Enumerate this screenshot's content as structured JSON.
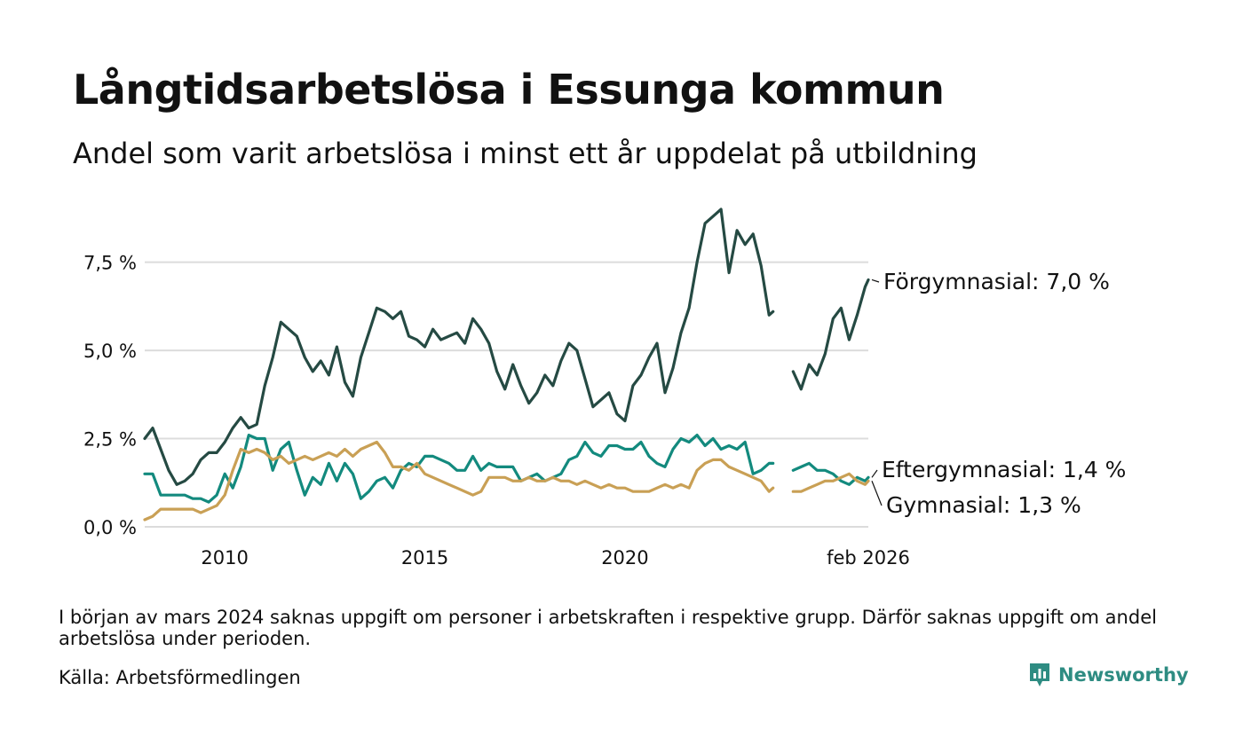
{
  "chart_data": {
    "type": "line",
    "title": "Långtidsarbetslösa i Essunga kommun",
    "subtitle": "Andel som varit arbetslösa i minst ett år uppdelat på utbildning",
    "x_range": [
      2008.0,
      2026.08
    ],
    "ylim": [
      0,
      9.4
    ],
    "y_ticks": [
      0,
      2.5,
      5,
      7.5
    ],
    "y_tick_labels": [
      "0,0 %",
      "2,5 %",
      "5,0 %",
      "7,5 %"
    ],
    "x_ticks": [
      2010,
      2015,
      2020,
      2026.08
    ],
    "x_tick_labels": [
      "2010",
      "2015",
      "2020",
      "feb 2026"
    ],
    "grid": true,
    "gap": [
      2023.7,
      2024.2
    ],
    "series": [
      {
        "name": "Förgymnasial",
        "end_label": "Förgymnasial: 7,0 %",
        "color": "#254a43",
        "points": [
          [
            2008.0,
            2.5
          ],
          [
            2008.2,
            2.8
          ],
          [
            2008.4,
            2.2
          ],
          [
            2008.6,
            1.6
          ],
          [
            2008.8,
            1.2
          ],
          [
            2009.0,
            1.3
          ],
          [
            2009.2,
            1.5
          ],
          [
            2009.4,
            1.9
          ],
          [
            2009.6,
            2.1
          ],
          [
            2009.8,
            2.1
          ],
          [
            2010.0,
            2.4
          ],
          [
            2010.2,
            2.8
          ],
          [
            2010.4,
            3.1
          ],
          [
            2010.6,
            2.8
          ],
          [
            2010.8,
            2.9
          ],
          [
            2011.0,
            4.0
          ],
          [
            2011.2,
            4.8
          ],
          [
            2011.4,
            5.8
          ],
          [
            2011.6,
            5.6
          ],
          [
            2011.8,
            5.4
          ],
          [
            2012.0,
            4.8
          ],
          [
            2012.2,
            4.4
          ],
          [
            2012.4,
            4.7
          ],
          [
            2012.6,
            4.3
          ],
          [
            2012.8,
            5.1
          ],
          [
            2013.0,
            4.1
          ],
          [
            2013.2,
            3.7
          ],
          [
            2013.4,
            4.8
          ],
          [
            2013.6,
            5.5
          ],
          [
            2013.8,
            6.2
          ],
          [
            2014.0,
            6.1
          ],
          [
            2014.2,
            5.9
          ],
          [
            2014.4,
            6.1
          ],
          [
            2014.6,
            5.4
          ],
          [
            2014.8,
            5.3
          ],
          [
            2015.0,
            5.1
          ],
          [
            2015.2,
            5.6
          ],
          [
            2015.4,
            5.3
          ],
          [
            2015.6,
            5.4
          ],
          [
            2015.8,
            5.5
          ],
          [
            2016.0,
            5.2
          ],
          [
            2016.2,
            5.9
          ],
          [
            2016.4,
            5.6
          ],
          [
            2016.6,
            5.2
          ],
          [
            2016.8,
            4.4
          ],
          [
            2017.0,
            3.9
          ],
          [
            2017.2,
            4.6
          ],
          [
            2017.4,
            4.0
          ],
          [
            2017.6,
            3.5
          ],
          [
            2017.8,
            3.8
          ],
          [
            2018.0,
            4.3
          ],
          [
            2018.2,
            4.0
          ],
          [
            2018.4,
            4.7
          ],
          [
            2018.6,
            5.2
          ],
          [
            2018.8,
            5.0
          ],
          [
            2019.0,
            4.2
          ],
          [
            2019.2,
            3.4
          ],
          [
            2019.4,
            3.6
          ],
          [
            2019.6,
            3.8
          ],
          [
            2019.8,
            3.2
          ],
          [
            2020.0,
            3.0
          ],
          [
            2020.2,
            4.0
          ],
          [
            2020.4,
            4.3
          ],
          [
            2020.6,
            4.8
          ],
          [
            2020.8,
            5.2
          ],
          [
            2021.0,
            3.8
          ],
          [
            2021.2,
            4.5
          ],
          [
            2021.4,
            5.5
          ],
          [
            2021.6,
            6.2
          ],
          [
            2021.8,
            7.5
          ],
          [
            2022.0,
            8.6
          ],
          [
            2022.2,
            8.8
          ],
          [
            2022.4,
            9.0
          ],
          [
            2022.6,
            7.2
          ],
          [
            2022.8,
            8.4
          ],
          [
            2023.0,
            8.0
          ],
          [
            2023.2,
            8.3
          ],
          [
            2023.4,
            7.4
          ],
          [
            2023.6,
            6.0
          ],
          [
            2023.7,
            6.1
          ],
          [
            2024.2,
            4.4
          ],
          [
            2024.4,
            3.9
          ],
          [
            2024.6,
            4.6
          ],
          [
            2024.8,
            4.3
          ],
          [
            2025.0,
            4.9
          ],
          [
            2025.2,
            5.9
          ],
          [
            2025.4,
            6.2
          ],
          [
            2025.6,
            5.3
          ],
          [
            2025.8,
            6.0
          ],
          [
            2026.0,
            6.8
          ],
          [
            2026.08,
            7.0
          ]
        ]
      },
      {
        "name": "Eftergymnasial",
        "end_label": "Eftergymnasial: 1,4 %",
        "color": "#138a7e",
        "points": [
          [
            2008.0,
            1.5
          ],
          [
            2008.2,
            1.5
          ],
          [
            2008.4,
            0.9
          ],
          [
            2008.6,
            0.9
          ],
          [
            2008.8,
            0.9
          ],
          [
            2009.0,
            0.9
          ],
          [
            2009.2,
            0.8
          ],
          [
            2009.4,
            0.8
          ],
          [
            2009.6,
            0.7
          ],
          [
            2009.8,
            0.9
          ],
          [
            2010.0,
            1.5
          ],
          [
            2010.2,
            1.1
          ],
          [
            2010.4,
            1.7
          ],
          [
            2010.6,
            2.6
          ],
          [
            2010.8,
            2.5
          ],
          [
            2011.0,
            2.5
          ],
          [
            2011.2,
            1.6
          ],
          [
            2011.4,
            2.2
          ],
          [
            2011.6,
            2.4
          ],
          [
            2011.8,
            1.6
          ],
          [
            2012.0,
            0.9
          ],
          [
            2012.2,
            1.4
          ],
          [
            2012.4,
            1.2
          ],
          [
            2012.6,
            1.8
          ],
          [
            2012.8,
            1.3
          ],
          [
            2013.0,
            1.8
          ],
          [
            2013.2,
            1.5
          ],
          [
            2013.4,
            0.8
          ],
          [
            2013.6,
            1.0
          ],
          [
            2013.8,
            1.3
          ],
          [
            2014.0,
            1.4
          ],
          [
            2014.2,
            1.1
          ],
          [
            2014.4,
            1.6
          ],
          [
            2014.6,
            1.8
          ],
          [
            2014.8,
            1.7
          ],
          [
            2015.0,
            2.0
          ],
          [
            2015.2,
            2.0
          ],
          [
            2015.4,
            1.9
          ],
          [
            2015.6,
            1.8
          ],
          [
            2015.8,
            1.6
          ],
          [
            2016.0,
            1.6
          ],
          [
            2016.2,
            2.0
          ],
          [
            2016.4,
            1.6
          ],
          [
            2016.6,
            1.8
          ],
          [
            2016.8,
            1.7
          ],
          [
            2017.0,
            1.7
          ],
          [
            2017.2,
            1.7
          ],
          [
            2017.4,
            1.3
          ],
          [
            2017.6,
            1.4
          ],
          [
            2017.8,
            1.5
          ],
          [
            2018.0,
            1.3
          ],
          [
            2018.2,
            1.4
          ],
          [
            2018.4,
            1.5
          ],
          [
            2018.6,
            1.9
          ],
          [
            2018.8,
            2.0
          ],
          [
            2019.0,
            2.4
          ],
          [
            2019.2,
            2.1
          ],
          [
            2019.4,
            2.0
          ],
          [
            2019.6,
            2.3
          ],
          [
            2019.8,
            2.3
          ],
          [
            2020.0,
            2.2
          ],
          [
            2020.2,
            2.2
          ],
          [
            2020.4,
            2.4
          ],
          [
            2020.6,
            2.0
          ],
          [
            2020.8,
            1.8
          ],
          [
            2021.0,
            1.7
          ],
          [
            2021.2,
            2.2
          ],
          [
            2021.4,
            2.5
          ],
          [
            2021.6,
            2.4
          ],
          [
            2021.8,
            2.6
          ],
          [
            2022.0,
            2.3
          ],
          [
            2022.2,
            2.5
          ],
          [
            2022.4,
            2.2
          ],
          [
            2022.6,
            2.3
          ],
          [
            2022.8,
            2.2
          ],
          [
            2023.0,
            2.4
          ],
          [
            2023.2,
            1.5
          ],
          [
            2023.4,
            1.6
          ],
          [
            2023.6,
            1.8
          ],
          [
            2023.7,
            1.8
          ],
          [
            2024.2,
            1.6
          ],
          [
            2024.4,
            1.7
          ],
          [
            2024.6,
            1.8
          ],
          [
            2024.8,
            1.6
          ],
          [
            2025.0,
            1.6
          ],
          [
            2025.2,
            1.5
          ],
          [
            2025.4,
            1.3
          ],
          [
            2025.6,
            1.2
          ],
          [
            2025.8,
            1.4
          ],
          [
            2026.0,
            1.3
          ],
          [
            2026.08,
            1.4
          ]
        ]
      },
      {
        "name": "Gymnasial",
        "end_label": "Gymnasial: 1,3 %",
        "color": "#c9a055",
        "points": [
          [
            2008.0,
            0.2
          ],
          [
            2008.2,
            0.3
          ],
          [
            2008.4,
            0.5
          ],
          [
            2008.6,
            0.5
          ],
          [
            2008.8,
            0.5
          ],
          [
            2009.0,
            0.5
          ],
          [
            2009.2,
            0.5
          ],
          [
            2009.4,
            0.4
          ],
          [
            2009.6,
            0.5
          ],
          [
            2009.8,
            0.6
          ],
          [
            2010.0,
            0.9
          ],
          [
            2010.2,
            1.6
          ],
          [
            2010.4,
            2.2
          ],
          [
            2010.6,
            2.1
          ],
          [
            2010.8,
            2.2
          ],
          [
            2011.0,
            2.1
          ],
          [
            2011.2,
            1.9
          ],
          [
            2011.4,
            2.0
          ],
          [
            2011.6,
            1.8
          ],
          [
            2011.8,
            1.9
          ],
          [
            2012.0,
            2.0
          ],
          [
            2012.2,
            1.9
          ],
          [
            2012.4,
            2.0
          ],
          [
            2012.6,
            2.1
          ],
          [
            2012.8,
            2.0
          ],
          [
            2013.0,
            2.2
          ],
          [
            2013.2,
            2.0
          ],
          [
            2013.4,
            2.2
          ],
          [
            2013.6,
            2.3
          ],
          [
            2013.8,
            2.4
          ],
          [
            2014.0,
            2.1
          ],
          [
            2014.2,
            1.7
          ],
          [
            2014.4,
            1.7
          ],
          [
            2014.6,
            1.6
          ],
          [
            2014.8,
            1.8
          ],
          [
            2015.0,
            1.5
          ],
          [
            2015.2,
            1.4
          ],
          [
            2015.4,
            1.3
          ],
          [
            2015.6,
            1.2
          ],
          [
            2015.8,
            1.1
          ],
          [
            2016.0,
            1.0
          ],
          [
            2016.2,
            0.9
          ],
          [
            2016.4,
            1.0
          ],
          [
            2016.6,
            1.4
          ],
          [
            2016.8,
            1.4
          ],
          [
            2017.0,
            1.4
          ],
          [
            2017.2,
            1.3
          ],
          [
            2017.4,
            1.3
          ],
          [
            2017.6,
            1.4
          ],
          [
            2017.8,
            1.3
          ],
          [
            2018.0,
            1.3
          ],
          [
            2018.2,
            1.4
          ],
          [
            2018.4,
            1.3
          ],
          [
            2018.6,
            1.3
          ],
          [
            2018.8,
            1.2
          ],
          [
            2019.0,
            1.3
          ],
          [
            2019.2,
            1.2
          ],
          [
            2019.4,
            1.1
          ],
          [
            2019.6,
            1.2
          ],
          [
            2019.8,
            1.1
          ],
          [
            2020.0,
            1.1
          ],
          [
            2020.2,
            1.0
          ],
          [
            2020.4,
            1.0
          ],
          [
            2020.6,
            1.0
          ],
          [
            2020.8,
            1.1
          ],
          [
            2021.0,
            1.2
          ],
          [
            2021.2,
            1.1
          ],
          [
            2021.4,
            1.2
          ],
          [
            2021.6,
            1.1
          ],
          [
            2021.8,
            1.6
          ],
          [
            2022.0,
            1.8
          ],
          [
            2022.2,
            1.9
          ],
          [
            2022.4,
            1.9
          ],
          [
            2022.6,
            1.7
          ],
          [
            2022.8,
            1.6
          ],
          [
            2023.0,
            1.5
          ],
          [
            2023.2,
            1.4
          ],
          [
            2023.4,
            1.3
          ],
          [
            2023.6,
            1.0
          ],
          [
            2023.7,
            1.1
          ],
          [
            2024.2,
            1.0
          ],
          [
            2024.4,
            1.0
          ],
          [
            2024.6,
            1.1
          ],
          [
            2024.8,
            1.2
          ],
          [
            2025.0,
            1.3
          ],
          [
            2025.2,
            1.3
          ],
          [
            2025.4,
            1.4
          ],
          [
            2025.6,
            1.5
          ],
          [
            2025.8,
            1.3
          ],
          [
            2026.0,
            1.2
          ],
          [
            2026.08,
            1.3
          ]
        ]
      }
    ],
    "note": "I början av mars 2024 saknas uppgift om personer i arbetskraften i respektive grupp. Därför saknas uppgift om andel arbetslösa under perioden.",
    "source": "Källa: Arbetsförmedlingen",
    "brand": "Newsworthy"
  }
}
